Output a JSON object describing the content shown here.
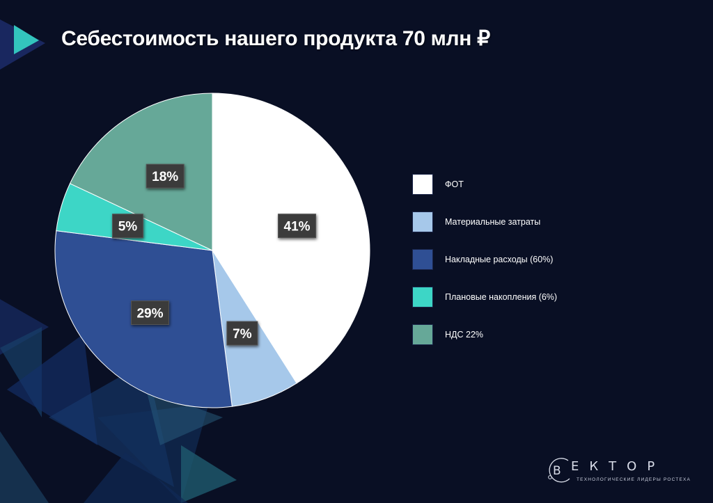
{
  "slide": {
    "title": "Себестоимость нашего продукта 70 млн  ₽"
  },
  "chart_data": {
    "type": "pie",
    "slices": [
      {
        "label": "ФОТ",
        "value": 41,
        "display": "41%",
        "color": "#ffffff"
      },
      {
        "label": "Материальные затраты",
        "value": 7,
        "display": "7%",
        "color": "#a6c8ea"
      },
      {
        "label": "Накладные расходы (60%)",
        "value": 29,
        "display": "29%",
        "color": "#2f4f94"
      },
      {
        "label": "Плановые накопления (6%)",
        "value": 5,
        "display": "5%",
        "color": "#3dd6c6"
      },
      {
        "label": "НДС 22%",
        "value": 18,
        "display": "18%",
        "color": "#66a898"
      }
    ],
    "legend_position": "right",
    "label_style": "dark boxes with percentages"
  },
  "logo": {
    "letters": "ЕКТОР",
    "mark": "В",
    "subtitle": "ТЕХНОЛОГИЧЕСКИЕ ЛИДЕРЫ РОСТЕХА"
  }
}
